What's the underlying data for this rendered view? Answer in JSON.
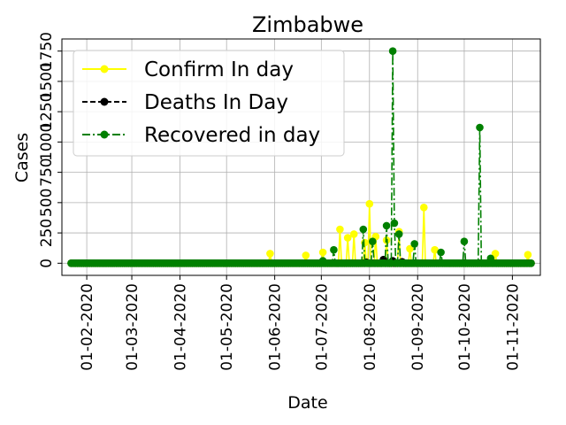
{
  "chart_data": {
    "type": "line",
    "title": "Zimbabwe",
    "xlabel": "Date",
    "ylabel": "Cases",
    "x_start": "2020-01-22",
    "x_end": "2020-11-13",
    "xlim": [
      "2020-01-16",
      "2020-11-19"
    ],
    "ylim": [
      -100,
      1850
    ],
    "grid": true,
    "legend_position": "top-left",
    "x_ticks": [
      "01-02-2020",
      "01-03-2020",
      "01-04-2020",
      "01-05-2020",
      "01-06-2020",
      "01-07-2020",
      "01-08-2020",
      "01-09-2020",
      "01-10-2020",
      "01-11-2020"
    ],
    "y_ticks": [
      {
        "value": 0,
        "label": "0"
      },
      {
        "value": 250,
        "label": "250"
      },
      {
        "value": 500,
        "label": "500"
      },
      {
        "value": 750,
        "label": "750"
      },
      {
        "value": 1000,
        "label": "1000"
      },
      {
        "value": 1250,
        "label": "1250"
      },
      {
        "value": 1500,
        "label": "1500"
      },
      {
        "value": 1750,
        "label": "1750"
      }
    ],
    "series": [
      {
        "name": "Confirm In day",
        "color": "#ffff00",
        "linestyle": "solid",
        "spikes": [
          {
            "date": "2020-05-29",
            "value": 80
          },
          {
            "date": "2020-06-21",
            "value": 65
          },
          {
            "date": "2020-07-02",
            "value": 90
          },
          {
            "date": "2020-07-13",
            "value": 280
          },
          {
            "date": "2020-07-18",
            "value": 210
          },
          {
            "date": "2020-07-22",
            "value": 240
          },
          {
            "date": "2020-07-29",
            "value": 170
          },
          {
            "date": "2020-08-01",
            "value": 490
          },
          {
            "date": "2020-08-05",
            "value": 220
          },
          {
            "date": "2020-08-12",
            "value": 190
          },
          {
            "date": "2020-08-20",
            "value": 260
          },
          {
            "date": "2020-08-27",
            "value": 120
          },
          {
            "date": "2020-09-05",
            "value": 460
          },
          {
            "date": "2020-09-12",
            "value": 110
          },
          {
            "date": "2020-10-21",
            "value": 80
          },
          {
            "date": "2020-11-11",
            "value": 70
          }
        ]
      },
      {
        "name": "Deaths In Day",
        "color": "#000000",
        "linestyle": "dashed",
        "spikes": [
          {
            "date": "2020-07-30",
            "value": 8
          },
          {
            "date": "2020-08-10",
            "value": 30
          },
          {
            "date": "2020-08-16",
            "value": 20
          },
          {
            "date": "2020-08-22",
            "value": 12
          }
        ]
      },
      {
        "name": "Recovered in day",
        "color": "#008000",
        "linestyle": "dashdot",
        "spikes": [
          {
            "date": "2020-07-02",
            "value": 20
          },
          {
            "date": "2020-07-09",
            "value": 110
          },
          {
            "date": "2020-07-28",
            "value": 280
          },
          {
            "date": "2020-08-03",
            "value": 180
          },
          {
            "date": "2020-08-12",
            "value": 310
          },
          {
            "date": "2020-08-16",
            "value": 1750
          },
          {
            "date": "2020-08-17",
            "value": 330
          },
          {
            "date": "2020-08-20",
            "value": 240
          },
          {
            "date": "2020-08-30",
            "value": 160
          },
          {
            "date": "2020-09-16",
            "value": 90
          },
          {
            "date": "2020-10-01",
            "value": 180
          },
          {
            "date": "2020-10-11",
            "value": 1120
          },
          {
            "date": "2020-10-18",
            "value": 40
          }
        ]
      }
    ]
  }
}
